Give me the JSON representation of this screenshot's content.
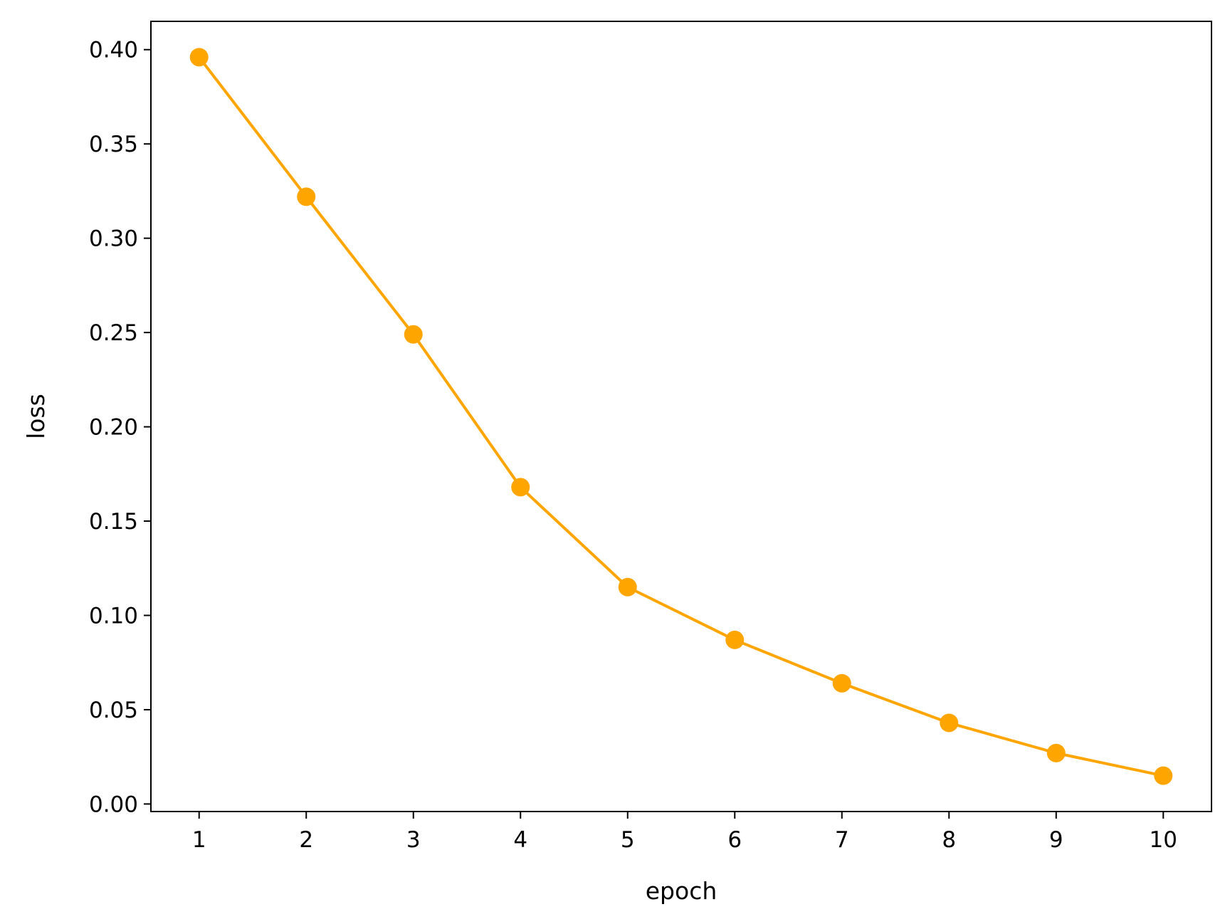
{
  "chart_data": {
    "type": "line",
    "title": "",
    "xlabel": "epoch",
    "ylabel": "loss",
    "x": [
      1,
      2,
      3,
      4,
      5,
      6,
      7,
      8,
      9,
      10
    ],
    "series": [
      {
        "values": [
          0.396,
          0.322,
          0.249,
          0.168,
          0.115,
          0.087,
          0.064,
          0.043,
          0.027,
          0.015
        ],
        "color": "#FFA500",
        "marker": "circle"
      }
    ],
    "xlim": [
      0.55,
      10.45
    ],
    "ylim": [
      -0.004,
      0.415
    ],
    "xticks": [
      1,
      2,
      3,
      4,
      5,
      6,
      7,
      8,
      9,
      10
    ],
    "yticks": [
      "0.00",
      "0.05",
      "0.10",
      "0.15",
      "0.20",
      "0.25",
      "0.30",
      "0.35",
      "0.40"
    ],
    "grid": false,
    "legend": "none"
  }
}
